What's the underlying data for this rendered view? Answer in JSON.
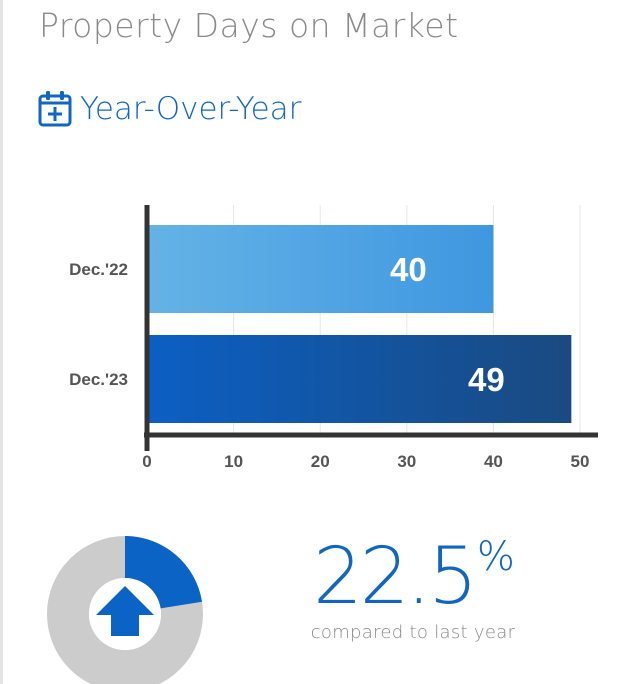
{
  "page": {
    "title": "Property Days on Market",
    "section_title": "Year-Over-Year"
  },
  "icons": {
    "section": "calendar-plus-icon",
    "change": "arrow-up-icon"
  },
  "colors": {
    "accent": "#1166c4",
    "bar_prev_start": "#64b3e6",
    "bar_prev_end": "#3f97e0",
    "bar_curr_start": "#0b5fc4",
    "bar_curr_end": "#1a4a80",
    "axis": "#333333",
    "donut_track": "#cccccc"
  },
  "chart_data": {
    "type": "bar",
    "orientation": "horizontal",
    "categories": [
      "Dec.'22",
      "Dec.'23"
    ],
    "values": [
      40,
      49
    ],
    "data_labels": [
      "40",
      "49"
    ],
    "xlim": [
      0,
      50
    ],
    "xticks": [
      0,
      10,
      20,
      30,
      40,
      50
    ],
    "grid": true
  },
  "summary": {
    "change_number": "22.5",
    "percent_sign": "%",
    "change_fraction": 0.225,
    "caption": "compared to last year"
  }
}
